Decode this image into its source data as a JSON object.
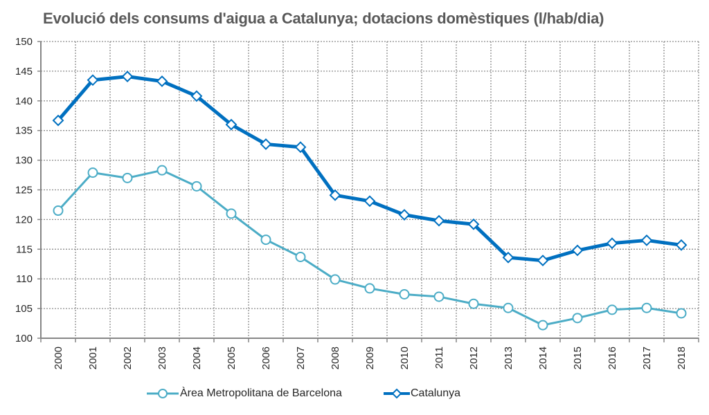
{
  "chart_data": {
    "type": "line",
    "title": "Evolució dels consums d'aigua a Catalunya; dotacions domèstiques (l/hab/dia)",
    "xlabel": "",
    "ylabel": "",
    "ylim": [
      100,
      150
    ],
    "yticks": [
      "100",
      "105",
      "110",
      "115",
      "120",
      "125",
      "130",
      "135",
      "140",
      "145",
      "150"
    ],
    "grid": true,
    "legend_position": "bottom",
    "categories": [
      "2000",
      "2001",
      "2002",
      "2003",
      "2004",
      "2005",
      "2006",
      "2007",
      "2008",
      "2009",
      "2010",
      "2011",
      "2012",
      "2013",
      "2014",
      "2015",
      "2016",
      "2017",
      "2018"
    ],
    "series": [
      {
        "name": "Àrea Metropolitana de Barcelona",
        "color": "#4bacc6",
        "marker": "circle",
        "values": [
          121.5,
          127.9,
          127.0,
          128.3,
          125.6,
          121.0,
          116.6,
          113.7,
          109.9,
          108.4,
          107.4,
          107.0,
          105.8,
          105.1,
          102.2,
          103.4,
          104.8,
          105.1,
          104.2
        ]
      },
      {
        "name": "Catalunya",
        "color": "#0070c0",
        "marker": "diamond",
        "values": [
          136.7,
          143.5,
          144.1,
          143.3,
          140.8,
          136.0,
          132.7,
          132.2,
          124.1,
          123.1,
          120.8,
          119.8,
          119.2,
          113.6,
          113.1,
          114.8,
          116.0,
          116.5,
          115.7
        ]
      }
    ]
  }
}
